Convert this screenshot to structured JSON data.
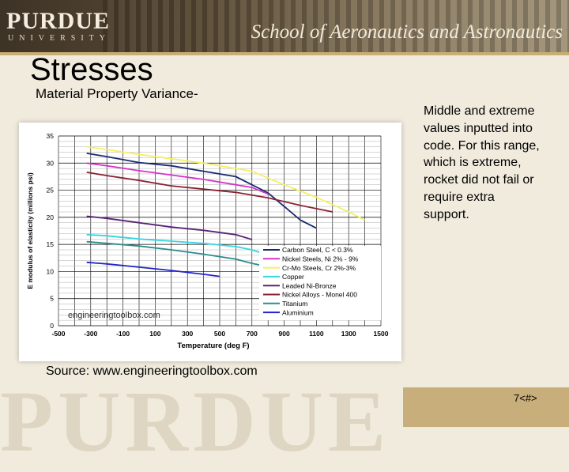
{
  "header": {
    "logo": "PURDUE",
    "logo_sub": "UNIVERSITY",
    "school": "School of Aeronautics and Astronautics"
  },
  "title": "Stresses",
  "subtitle": "Material Property Variance-",
  "side_text": "Middle and extreme values inputted into code.  For this range, which is extreme, rocket did not fail or require extra support.",
  "source": "Source: www.engineeringtoolbox.com",
  "slide_number": "7<#>",
  "chart_data": {
    "type": "line",
    "ylabel": "E modulus of elasticity (millions psi)",
    "xlabel": "Temperature (deg F)",
    "x_ticks": [
      "-500",
      "-300",
      "-100",
      "100",
      "300",
      "500",
      "700",
      "900",
      "1100",
      "1300",
      "1500"
    ],
    "y_ticks": [
      "0",
      "5",
      "10",
      "15",
      "20",
      "25",
      "30",
      "35"
    ],
    "xlim": [
      -500,
      1500
    ],
    "ylim": [
      0,
      35
    ],
    "watermark": "engineeringtoolbox.com",
    "legend_position": "bottom-right",
    "series": [
      {
        "name": "Carbon Steel, C < 0.3%",
        "color": "#1a2a6e",
        "points": [
          [
            -325,
            31.8
          ],
          [
            -200,
            31.2
          ],
          [
            0,
            30.1
          ],
          [
            200,
            29.5
          ],
          [
            400,
            28.5
          ],
          [
            600,
            27.5
          ],
          [
            700,
            26.0
          ],
          [
            800,
            24.5
          ],
          [
            900,
            22.0
          ],
          [
            1000,
            19.5
          ],
          [
            1100,
            18.0
          ]
        ]
      },
      {
        "name": "Nickel Steels, Ni 2% - 9%",
        "color": "#d633c9",
        "points": [
          [
            -325,
            30.0
          ],
          [
            -200,
            29.5
          ],
          [
            0,
            28.6
          ],
          [
            200,
            27.8
          ],
          [
            400,
            27.0
          ],
          [
            600,
            26.0
          ],
          [
            700,
            25.5
          ],
          [
            800,
            24.3
          ]
        ]
      },
      {
        "name": "Cr-Mo Steels, Cr 2%-3%",
        "color": "#f4f062",
        "points": [
          [
            -325,
            33.0
          ],
          [
            -200,
            32.5
          ],
          [
            0,
            31.6
          ],
          [
            200,
            30.8
          ],
          [
            400,
            30.0
          ],
          [
            600,
            29.0
          ],
          [
            700,
            28.5
          ],
          [
            900,
            26.0
          ],
          [
            1100,
            23.7
          ],
          [
            1300,
            21.0
          ],
          [
            1400,
            19.5
          ]
        ]
      },
      {
        "name": "Copper",
        "color": "#33d6e0",
        "points": [
          [
            -325,
            16.8
          ],
          [
            -200,
            16.6
          ],
          [
            0,
            16.0
          ],
          [
            200,
            15.6
          ],
          [
            400,
            15.2
          ],
          [
            600,
            14.6
          ],
          [
            700,
            14.0
          ],
          [
            750,
            13.5
          ]
        ]
      },
      {
        "name": "Leaded Ni-Bronze",
        "color": "#5a2277",
        "points": [
          [
            -325,
            20.2
          ],
          [
            -200,
            19.8
          ],
          [
            0,
            19.0
          ],
          [
            200,
            18.2
          ],
          [
            400,
            17.6
          ],
          [
            600,
            16.8
          ],
          [
            700,
            15.9
          ]
        ]
      },
      {
        "name": "Nickel Alloys - Monel 400",
        "color": "#8a2233",
        "points": [
          [
            -325,
            28.3
          ],
          [
            -200,
            27.7
          ],
          [
            0,
            26.8
          ],
          [
            200,
            25.8
          ],
          [
            400,
            25.2
          ],
          [
            600,
            24.6
          ],
          [
            800,
            23.6
          ],
          [
            1000,
            22.2
          ],
          [
            1200,
            21.0
          ]
        ]
      },
      {
        "name": "Titanium",
        "color": "#2d8b8b",
        "points": [
          [
            -325,
            15.5
          ],
          [
            -200,
            15.2
          ],
          [
            0,
            14.7
          ],
          [
            200,
            14.0
          ],
          [
            400,
            13.2
          ],
          [
            600,
            12.3
          ],
          [
            700,
            11.5
          ],
          [
            800,
            10.9
          ]
        ]
      },
      {
        "name": "Aluminium",
        "color": "#2222cc",
        "points": [
          [
            -325,
            11.7
          ],
          [
            -200,
            11.4
          ],
          [
            0,
            10.8
          ],
          [
            200,
            10.2
          ],
          [
            400,
            9.5
          ],
          [
            500,
            9.1
          ]
        ]
      }
    ]
  }
}
